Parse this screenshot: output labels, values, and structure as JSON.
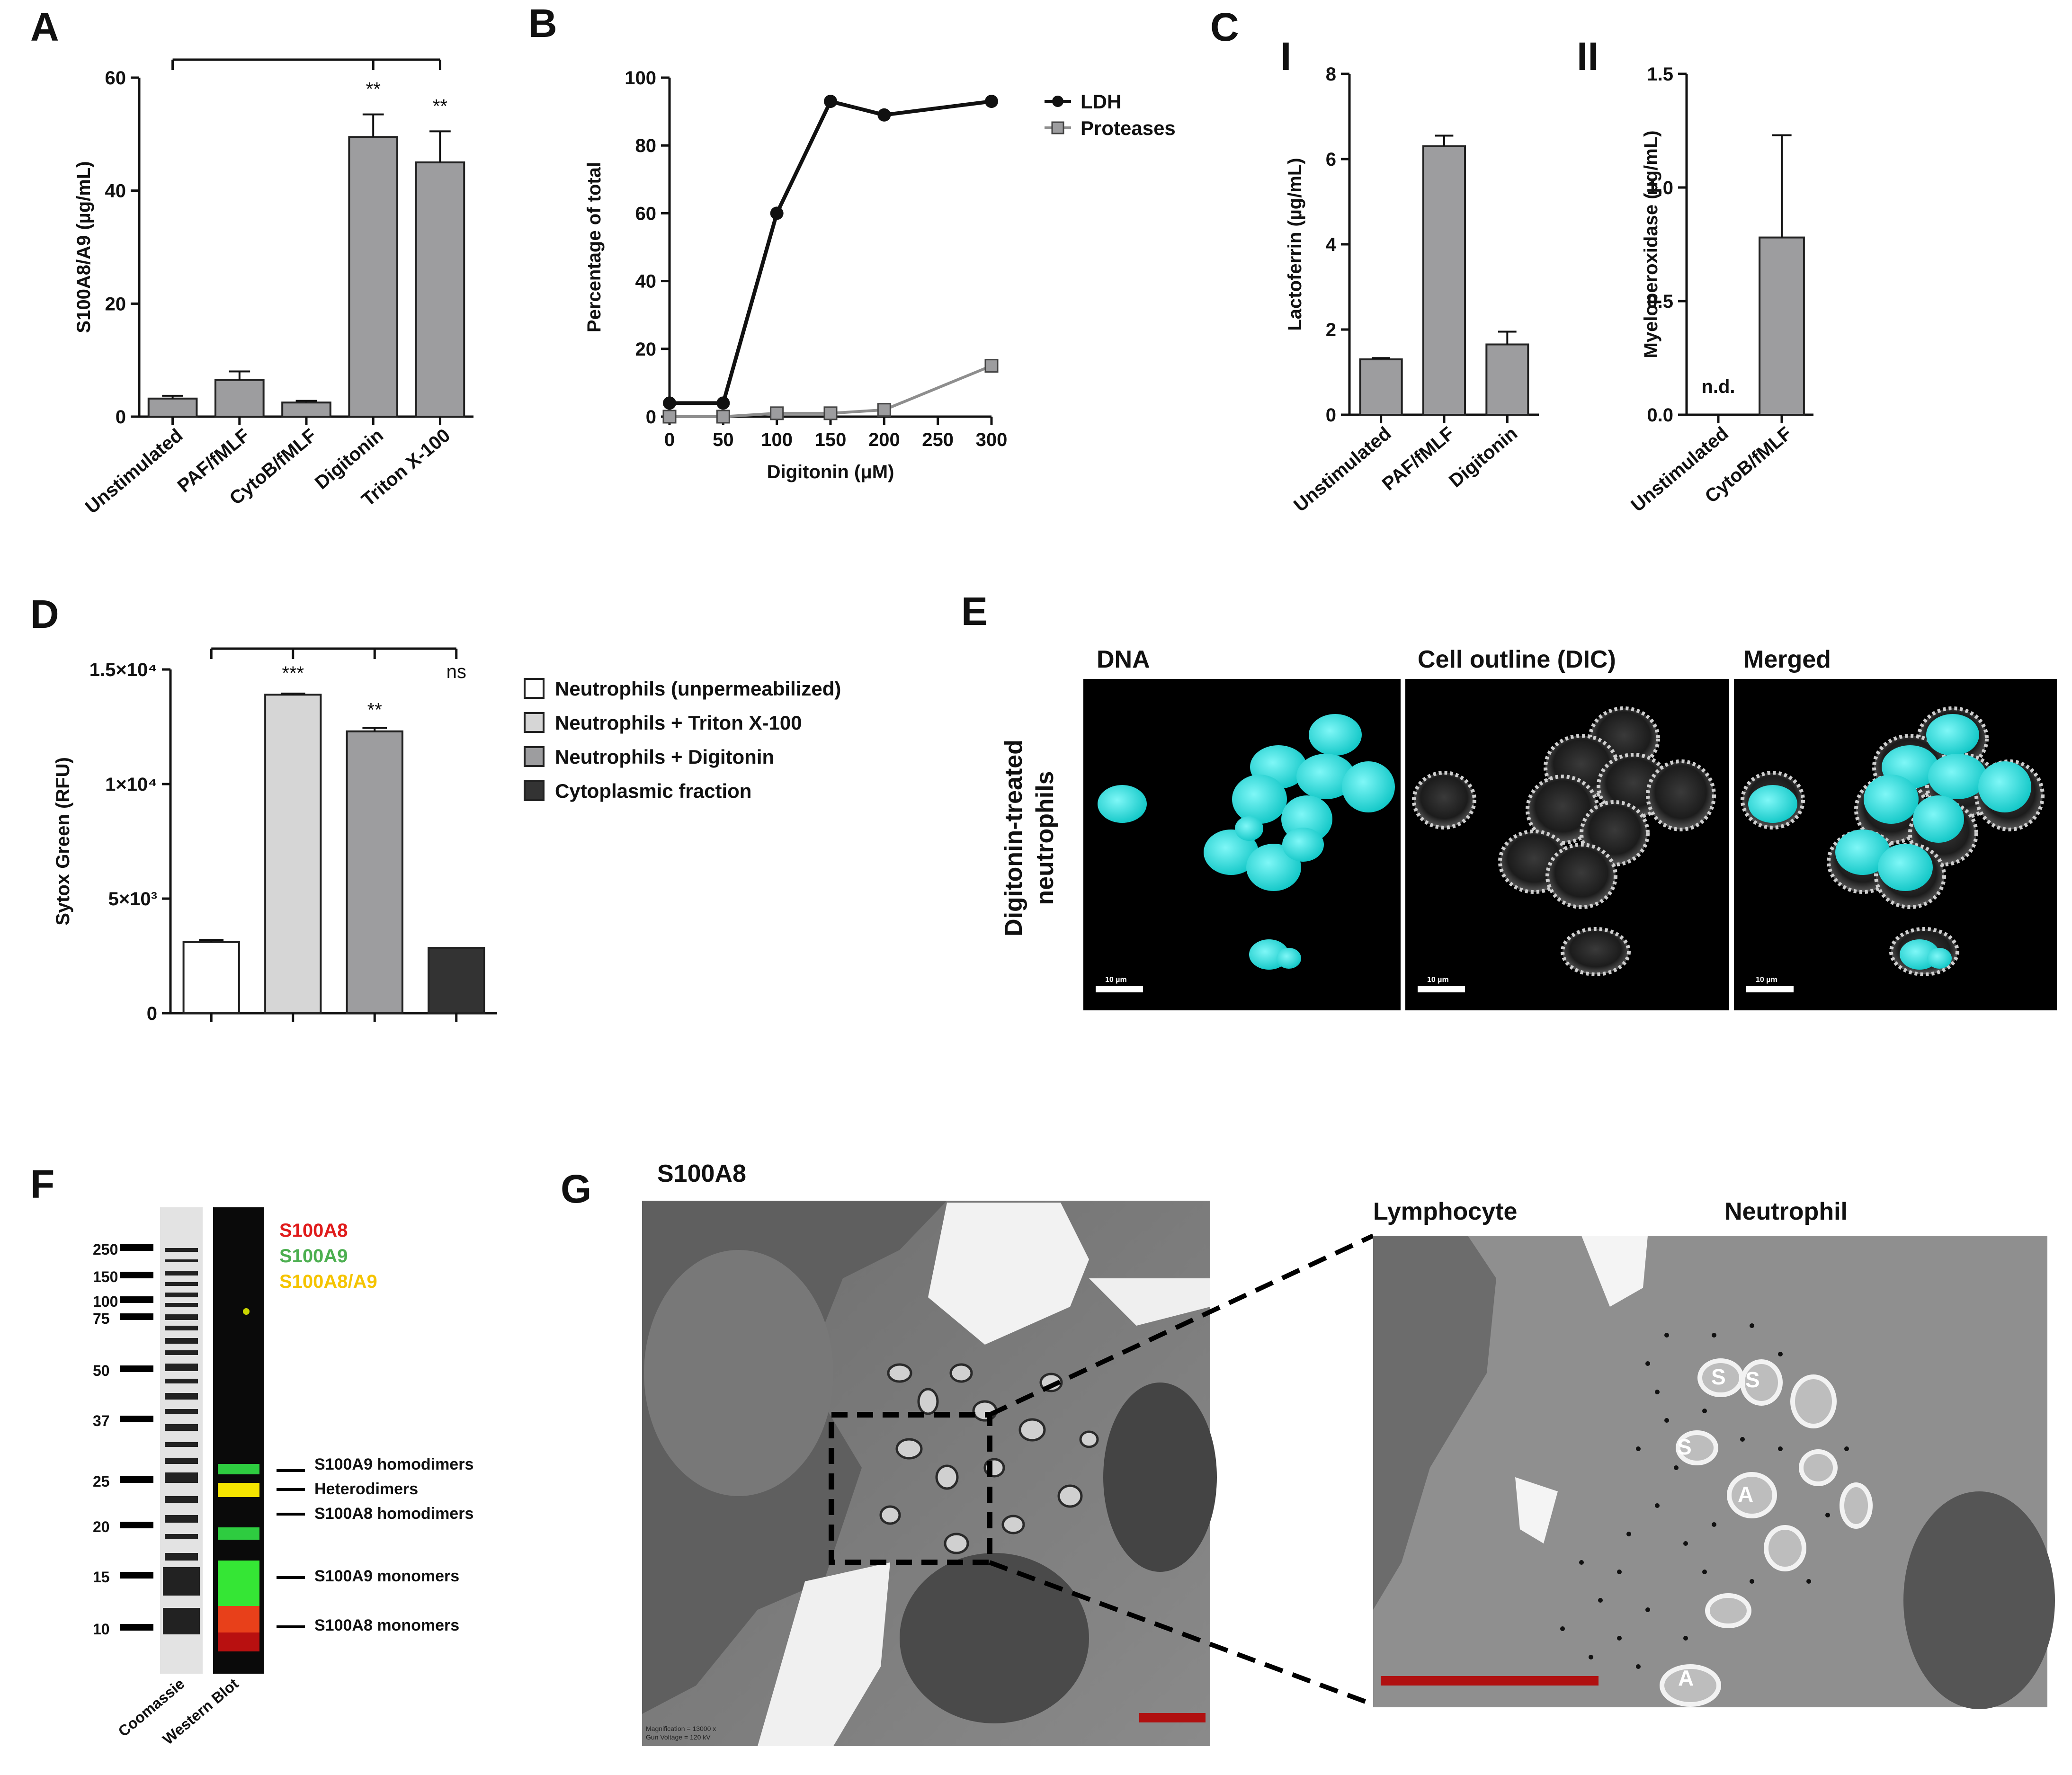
{
  "panels": {
    "A": "A",
    "B": "B",
    "C": "C",
    "D": "D",
    "E": "E",
    "F": "F",
    "G": "G"
  },
  "colors": {
    "bar_gray": "#9d9d9f",
    "bar_light": "#d6d6d6",
    "bar_dark": "#333333",
    "cyan": "#12d8d8",
    "red_bar": "#b01010",
    "ladder_red": "#e01b1b",
    "ladder_green": "#4caf50",
    "ladder_yellow": "#f5c400"
  },
  "chart_data": [
    {
      "id": "A",
      "type": "bar",
      "ylabel": "S100A8/A9 (µg/mL)",
      "ylim": [
        0,
        60
      ],
      "yticks": [
        "0",
        "20",
        "40",
        "60"
      ],
      "categories": [
        "Unstimulated",
        "PAF/fMLF",
        "CytoB/fMLF",
        "Digitonin",
        "Triton X-100"
      ],
      "values": [
        3.2,
        6.5,
        2.5,
        49.5,
        45.0
      ],
      "errors": [
        0.5,
        1.5,
        0.3,
        4.0,
        5.5
      ],
      "significance": [
        "",
        "",
        "",
        "**",
        "**"
      ]
    },
    {
      "id": "B",
      "type": "line",
      "xlabel": "Digitonin (μM)",
      "ylabel": "Percentage of total",
      "xlim": [
        0,
        300
      ],
      "ylim": [
        0,
        100
      ],
      "xticks": [
        "0",
        "50",
        "100",
        "150",
        "200",
        "250",
        "300"
      ],
      "yticks": [
        "0",
        "20",
        "40",
        "60",
        "80",
        "100"
      ],
      "x": [
        0,
        50,
        100,
        150,
        200,
        300
      ],
      "series": [
        {
          "name": "LDH",
          "values": [
            4,
            4,
            60,
            93,
            89,
            93
          ]
        },
        {
          "name": "Proteases",
          "values": [
            0,
            0,
            1,
            1,
            2,
            15
          ]
        }
      ]
    },
    {
      "id": "C-I",
      "type": "bar",
      "label": "I",
      "ylabel": "Lactoferrin (µg/mL)",
      "ylim": [
        0,
        8
      ],
      "yticks": [
        "0",
        "2",
        "4",
        "6",
        "8"
      ],
      "categories": [
        "Unstimulated",
        "PAF/fMLF",
        "Digitonin"
      ],
      "values": [
        1.3,
        6.3,
        1.65
      ],
      "errors": [
        0.03,
        0.25,
        0.3
      ]
    },
    {
      "id": "C-II",
      "type": "bar",
      "label": "II",
      "ylabel": "Myeloperoxidase (µg/mL)",
      "ylim": [
        0,
        1.5
      ],
      "yticks": [
        "0.0",
        "0.5",
        "1.0",
        "1.5"
      ],
      "categories": [
        "Unstimulated",
        "CytoB/fMLF"
      ],
      "values": [
        0,
        0.78
      ],
      "errors": [
        0,
        0.45
      ],
      "annotation": "n.d."
    },
    {
      "id": "D",
      "type": "bar",
      "ylabel": "Sytox Green (RFU)",
      "ylim": [
        0,
        15000
      ],
      "yticks": [
        "0",
        "5×10³",
        "1×10⁴",
        "1.5×10⁴"
      ],
      "series": [
        {
          "name": "Neutrophils (unpermeabilized)",
          "value": 3100,
          "error": 100
        },
        {
          "name": "Neutrophils + Triton X-100",
          "value": 13900,
          "error": 50
        },
        {
          "name": "Neutrophils + Digitonin",
          "value": 12300,
          "error": 150
        },
        {
          "name": "Cytoplasmic fraction",
          "value": 2850,
          "error": 0
        }
      ],
      "significance": [
        "",
        "***",
        "**",
        "ns"
      ]
    }
  ],
  "panel_E": {
    "titles": [
      "DNA",
      "Cell outline (DIC)",
      "Merged"
    ],
    "row_label_1": "Digitonin-treated",
    "row_label_2": "neutrophils",
    "scale_label": "10 µm"
  },
  "panel_F": {
    "ladder": [
      "250",
      "150",
      "100",
      "75",
      "50",
      "37",
      "25",
      "20",
      "15",
      "10"
    ],
    "legend": [
      "S100A8",
      "S100A9",
      "S100A8/A9"
    ],
    "bands": [
      "S100A9 homodimers",
      "Heterodimers",
      "S100A8 homodimers",
      "S100A9 monomers",
      "S100A8 monomers"
    ],
    "lanes": [
      "Coomassie",
      "Western Blot"
    ]
  },
  "panel_G": {
    "title": "S100A8",
    "left_label": "Lymphocyte",
    "right_label": "Neutrophil",
    "markers": [
      "S",
      "S",
      "S",
      "A",
      "A"
    ],
    "footer_line1": "Magnification = 13000 x",
    "footer_line2": "Gun Voltage = 120 kV"
  }
}
